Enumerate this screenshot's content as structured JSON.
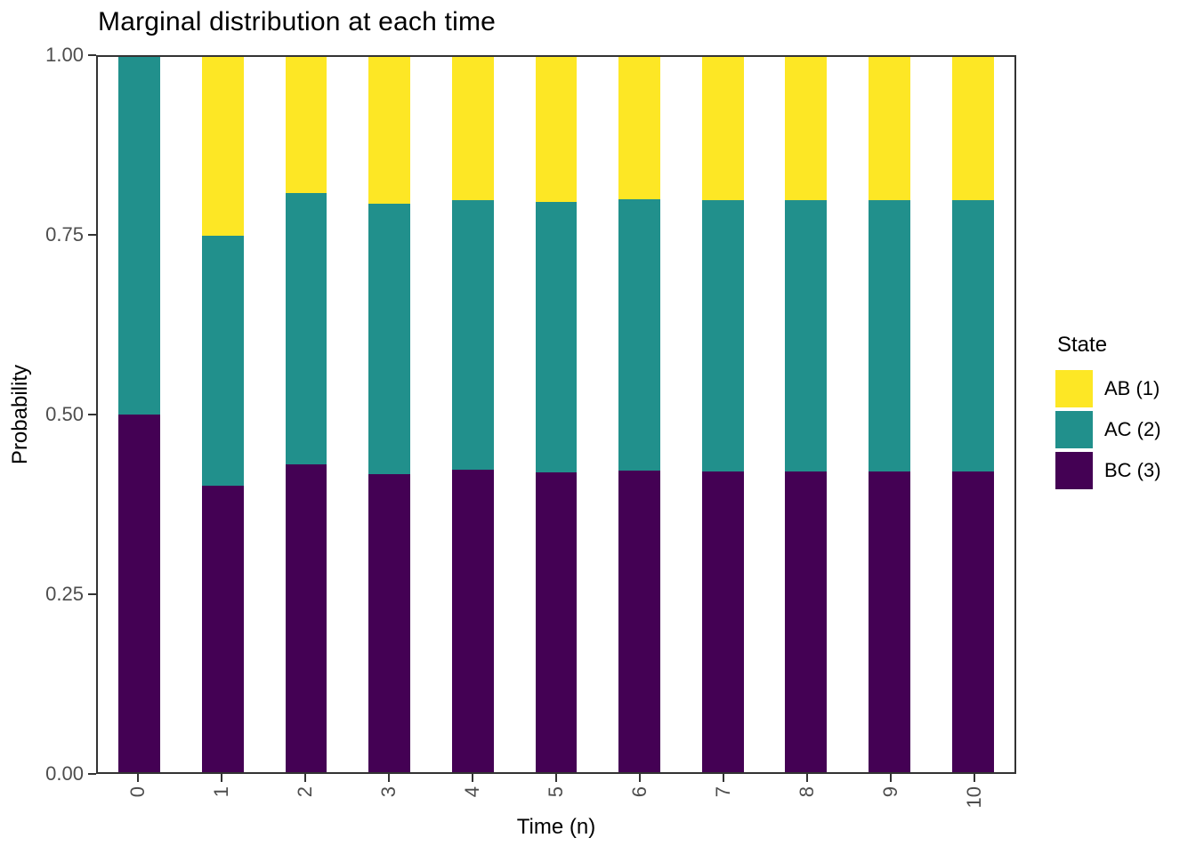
{
  "chart_data": {
    "type": "bar",
    "stacked": true,
    "title": "Marginal distribution at each time",
    "xlabel": "Time (n)",
    "ylabel": "Probability",
    "x_categories": [
      "0",
      "1",
      "2",
      "3",
      "4",
      "5",
      "6",
      "7",
      "8",
      "9",
      "10"
    ],
    "series": [
      {
        "name": "AB (1)",
        "color": "#FDE725",
        "values": [
          0.0,
          0.25,
          0.19,
          0.205,
          0.2,
          0.203,
          0.199,
          0.2,
          0.2,
          0.2,
          0.2
        ]
      },
      {
        "name": "AC (2)",
        "color": "#21908C",
        "values": [
          0.5,
          0.35,
          0.38,
          0.378,
          0.377,
          0.378,
          0.379,
          0.379,
          0.379,
          0.379,
          0.379
        ]
      },
      {
        "name": "BC (3)",
        "color": "#440154",
        "values": [
          0.5,
          0.4,
          0.43,
          0.417,
          0.423,
          0.419,
          0.422,
          0.421,
          0.421,
          0.421,
          0.421
        ]
      }
    ],
    "ylim": [
      0,
      1
    ],
    "ytick_labels": [
      "0.00",
      "0.25",
      "0.50",
      "0.75",
      "1.00"
    ],
    "ytick_values": [
      0,
      0.25,
      0.5,
      0.75,
      1
    ],
    "grid": false,
    "bar_width_fraction": 0.5,
    "legend_position": "right"
  },
  "legend": {
    "title": "State",
    "items": [
      {
        "label": "AB (1)",
        "color": "#FDE725"
      },
      {
        "label": "AC (2)",
        "color": "#21908C"
      },
      {
        "label": "BC (3)",
        "color": "#440154"
      }
    ]
  },
  "style_colors": {
    "panel_border": "#333333",
    "tick_mark": "#333333",
    "tick_text": "#4d4d4d",
    "title_text": "#000000"
  }
}
